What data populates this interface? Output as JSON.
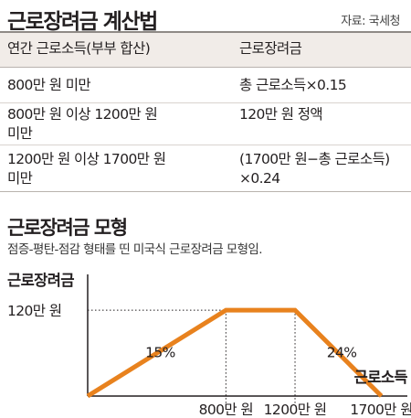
{
  "header": {
    "title": "근로장려금 계산법",
    "source": "자료: 국세청"
  },
  "table": {
    "columns": [
      "연간 근로소득(부부 합산)",
      "근로장려금"
    ],
    "rows": [
      {
        "income": [
          "800만 원 미만"
        ],
        "benefit": [
          "총 근로소득×0.15"
        ]
      },
      {
        "income": [
          "800만 원 이상 1200만 원",
          "미만"
        ],
        "benefit": [
          "120만 원 정액"
        ]
      },
      {
        "income": [
          "1200만 원 이상 1700만 원",
          "미만"
        ],
        "benefit": [
          "(1700만 원−총 근로소득)",
          "×0.24"
        ]
      }
    ]
  },
  "chart_section": {
    "title": "근로장려금 모형",
    "subtitle": "점증-평탄-점감 형태를 띤 미국식 근로장려금 모형임."
  },
  "colors": {
    "line": "#e8821e",
    "axis": "#231f20",
    "guide": "#231f20",
    "header_bg": "#f1ece8"
  },
  "chart_data": {
    "type": "line",
    "title": "근로장려금 모형",
    "ylabel": "근로장려금",
    "xlabel": "근로소득",
    "x": [
      0,
      800,
      1200,
      1700
    ],
    "y": [
      0,
      120,
      120,
      0
    ],
    "xlim": [
      0,
      1850
    ],
    "ylim": [
      0,
      170
    ],
    "x_ticks": [
      {
        "value": 800,
        "label": "800만 원"
      },
      {
        "value": 1200,
        "label": "1200만 원"
      },
      {
        "value": 1700,
        "label": "1700만 원"
      }
    ],
    "y_ticks": [
      {
        "value": 120,
        "label": "120만 원"
      }
    ],
    "annotations": [
      {
        "text": "15%",
        "x": 420,
        "y": 62
      },
      {
        "text": "24%",
        "x": 1470,
        "y": 62
      }
    ],
    "grid": false
  }
}
